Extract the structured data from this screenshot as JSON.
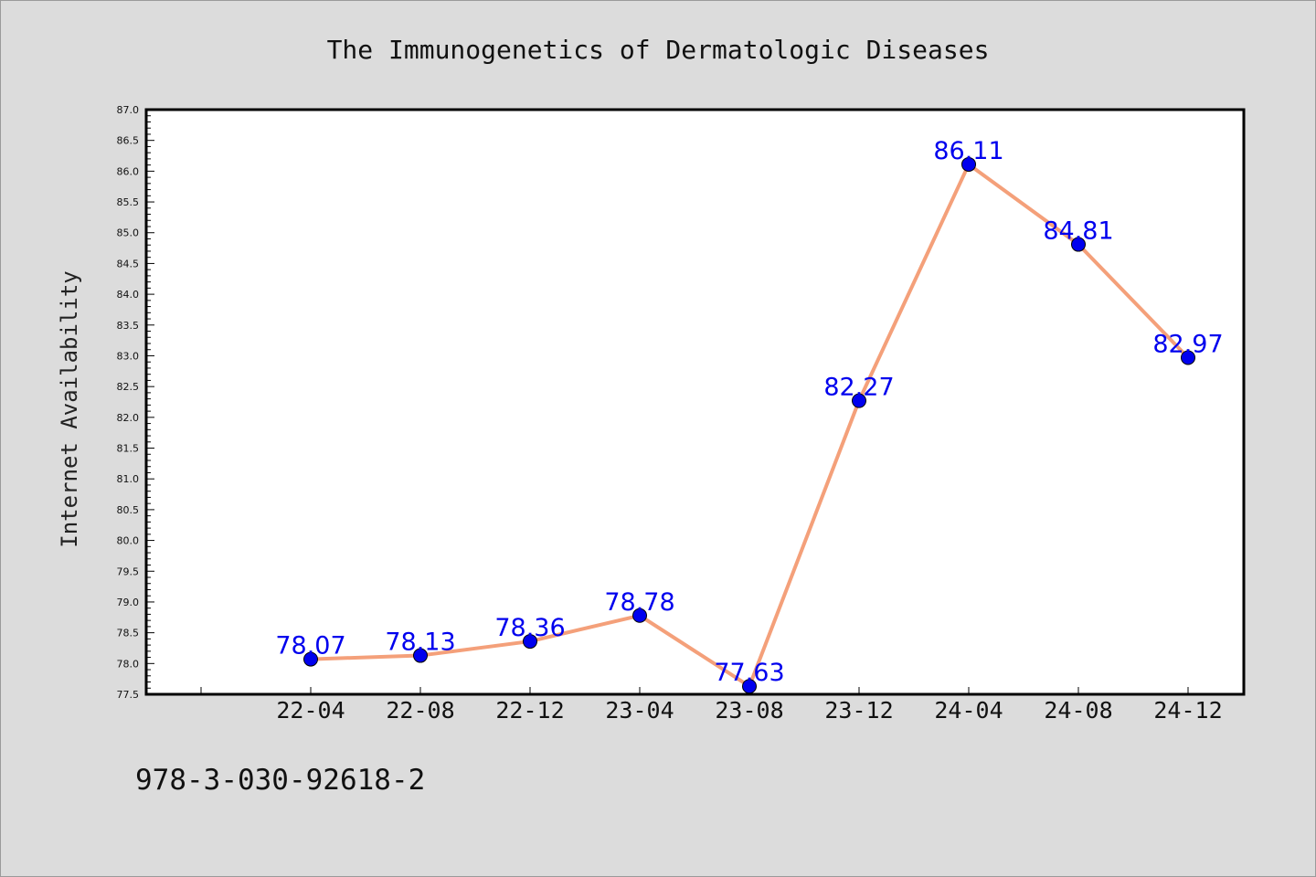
{
  "chart_data": {
    "type": "line",
    "title": "The Immunogenetics of Dermatologic Diseases",
    "ylabel": "Internet Availability",
    "xlabel": "",
    "categories": [
      "22-04",
      "22-08",
      "22-12",
      "23-04",
      "23-08",
      "23-12",
      "24-04",
      "24-08",
      "24-12"
    ],
    "series": [
      {
        "values": [
          78.07,
          78.13,
          78.36,
          78.78,
          77.63,
          82.27,
          86.11,
          84.81,
          82.97
        ],
        "labels": [
          "78.07",
          "78.13",
          "78.36",
          "78.78",
          "77.63",
          "82.27",
          "86.11",
          "84.81",
          "82.97"
        ],
        "line_color": "#f4a07a",
        "marker_color": "#0000ee"
      }
    ],
    "ylim": [
      77.5,
      87.0
    ],
    "yticks": [
      "77.5",
      "78.0",
      "78.5",
      "79.0",
      "79.5",
      "80.0",
      "80.5",
      "81.0",
      "81.5",
      "82.0",
      "82.5",
      "83.0",
      "83.5",
      "84.0",
      "84.5",
      "85.0",
      "85.5",
      "86.0",
      "86.5",
      "87.0"
    ],
    "grid": false,
    "legend": "none",
    "plot_background": "#ffffff",
    "page_background": "#dcdcdc"
  },
  "footer": {
    "isbn": "978-3-030-92618-2"
  }
}
